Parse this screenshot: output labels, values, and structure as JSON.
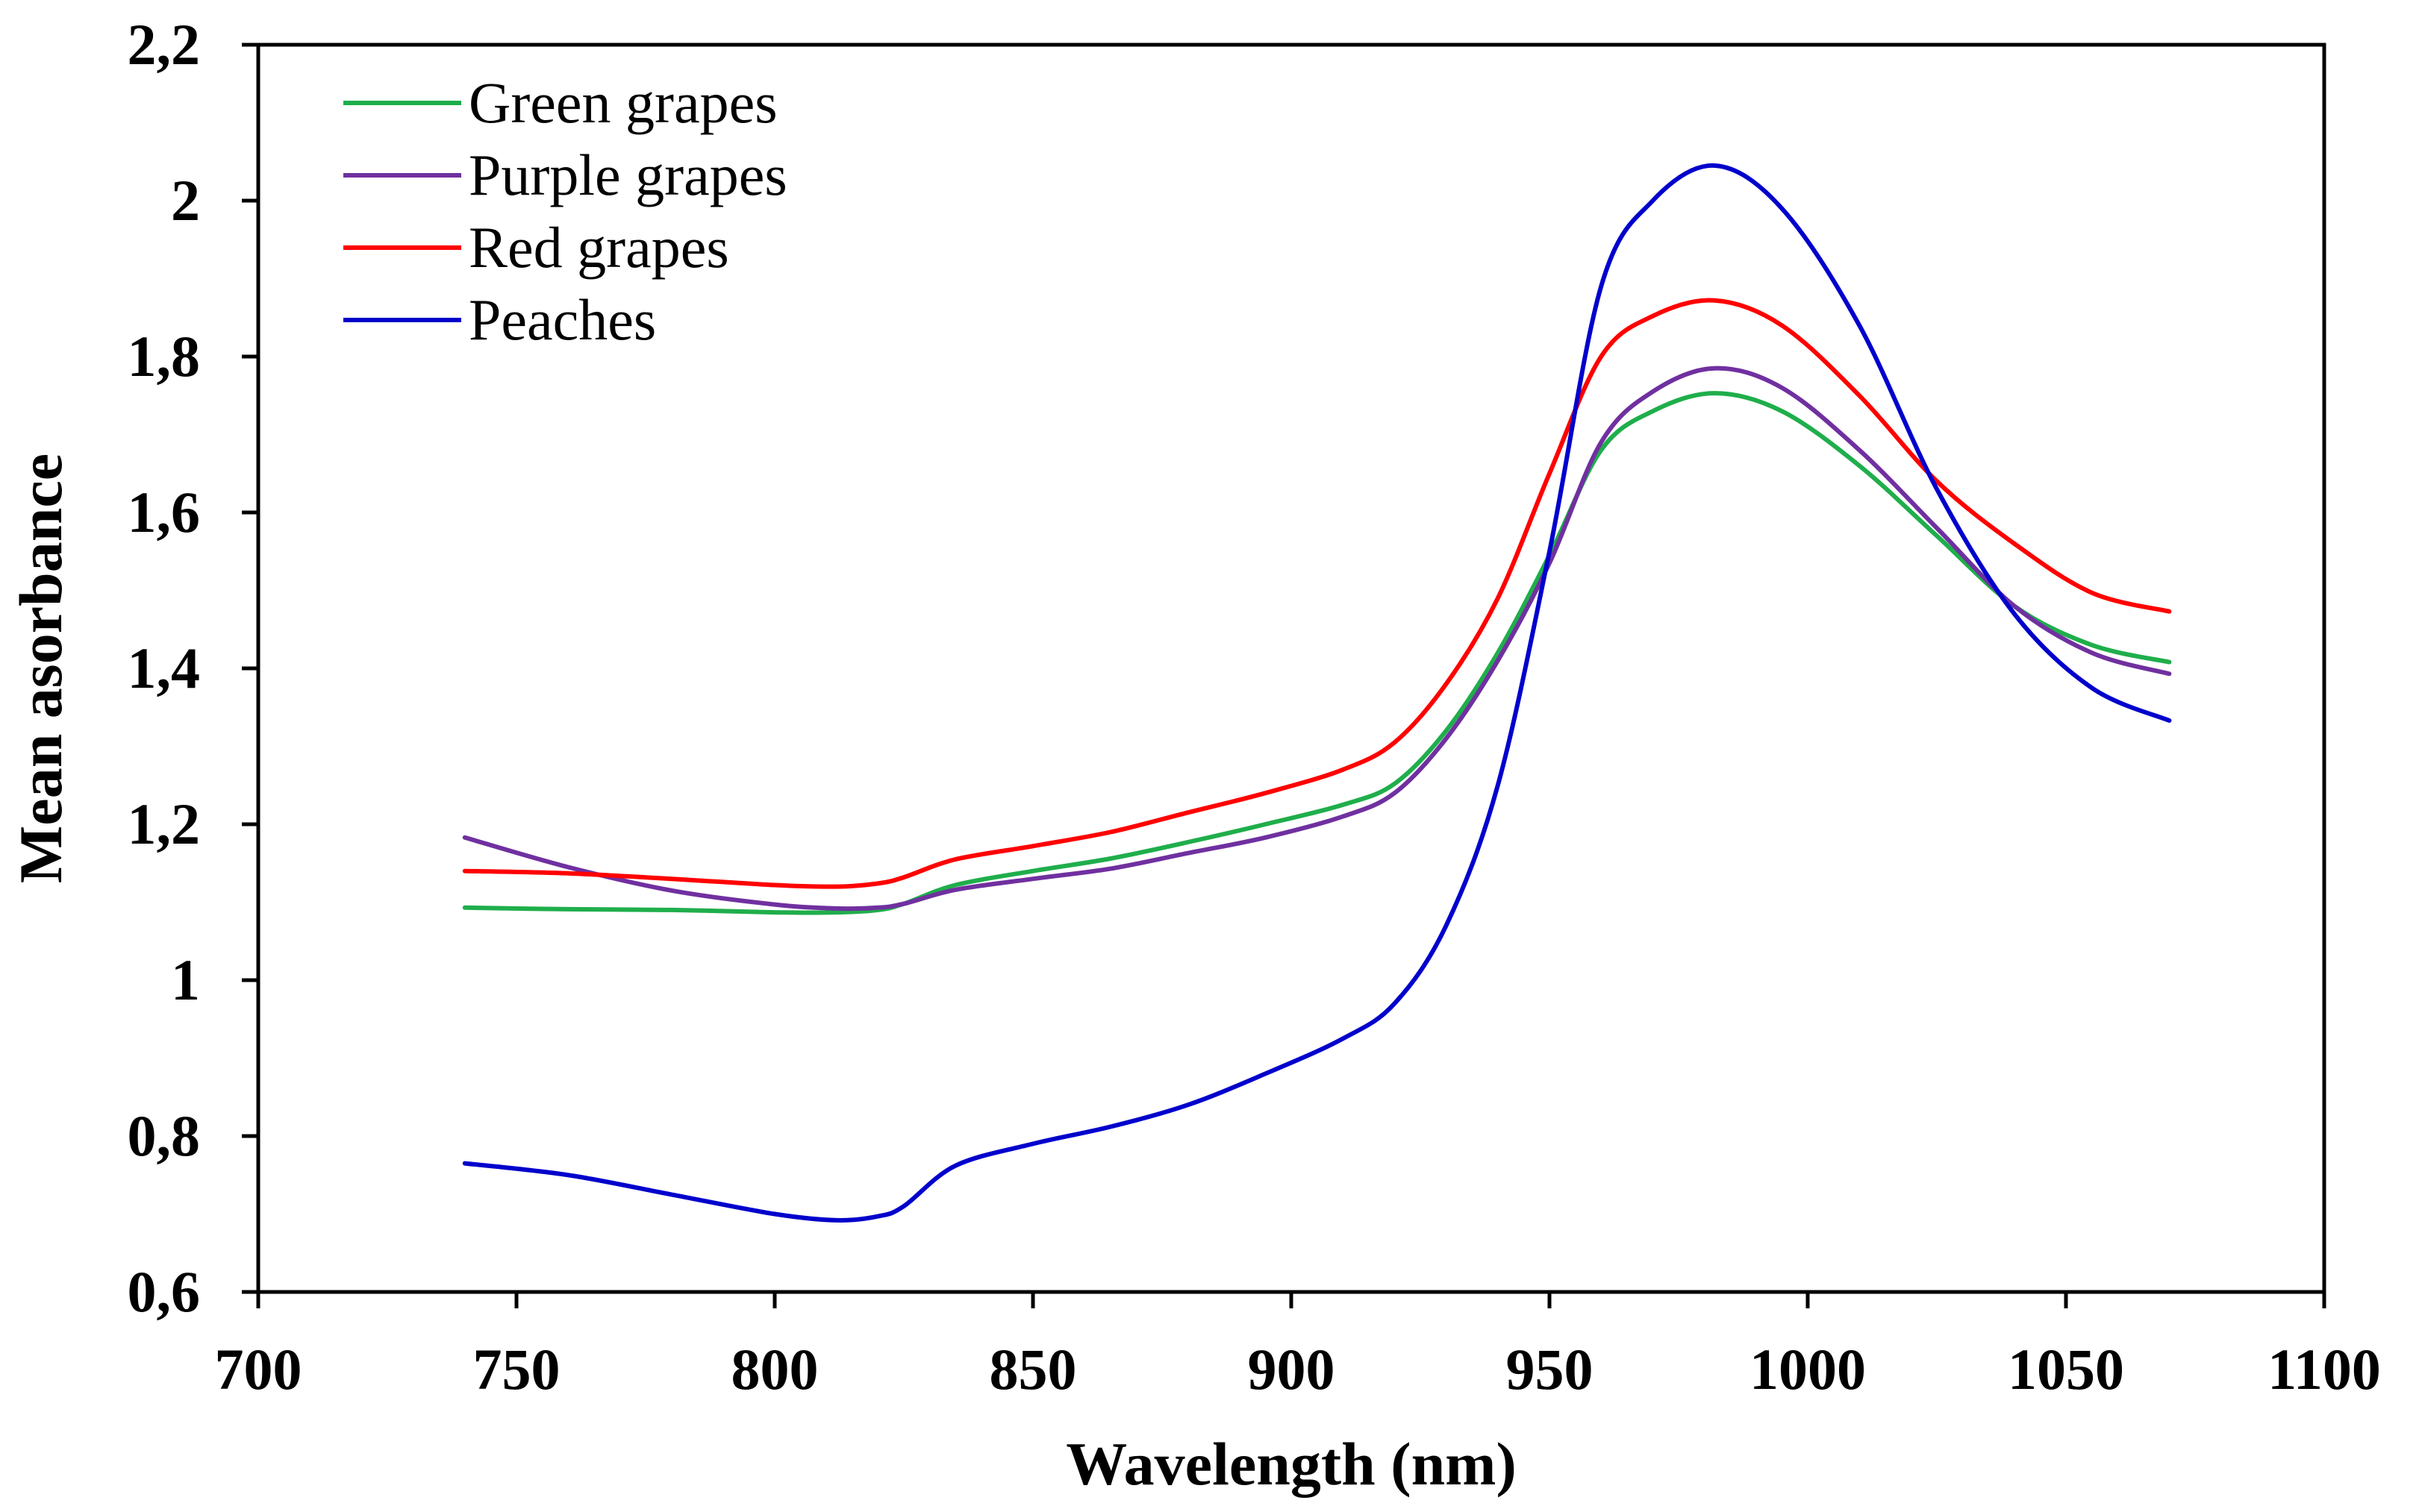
{
  "chart_data": {
    "type": "line",
    "title": "",
    "xlabel": "Wavelength (nm)",
    "ylabel": "Mean asorbance",
    "xlim": [
      700,
      1100
    ],
    "ylim": [
      0.6,
      2.2
    ],
    "x_ticks": [
      700,
      750,
      800,
      850,
      900,
      950,
      1000,
      1050,
      1100
    ],
    "x_tick_labels": [
      "700",
      "750",
      "800",
      "850",
      "900",
      "950",
      "1000",
      "1050",
      "1100"
    ],
    "y_ticks": [
      0.6,
      0.8,
      1.0,
      1.2,
      1.4,
      1.6,
      1.8,
      2.0,
      2.2
    ],
    "y_tick_labels": [
      "0,6",
      "0,8",
      "1",
      "1,2",
      "1,4",
      "1,6",
      "1,8",
      "2",
      "2,2"
    ],
    "grid": false,
    "legend_position": "top-left",
    "x": [
      740,
      760,
      780,
      800,
      812,
      820,
      825,
      835,
      850,
      865,
      880,
      895,
      910,
      920,
      930,
      940,
      950,
      960,
      970,
      982,
      995,
      1010,
      1025,
      1040,
      1055,
      1070
    ],
    "series": [
      {
        "name": "Green grapes",
        "color": "#1fae4b",
        "values": [
          1.093,
          1.091,
          1.09,
          1.087,
          1.087,
          1.09,
          1.098,
          1.122,
          1.14,
          1.156,
          1.177,
          1.2,
          1.225,
          1.252,
          1.32,
          1.42,
          1.545,
          1.68,
          1.73,
          1.753,
          1.73,
          1.66,
          1.57,
          1.48,
          1.43,
          1.408
        ]
      },
      {
        "name": "Purple grapes",
        "color": "#7030a0",
        "values": [
          1.183,
          1.145,
          1.115,
          1.097,
          1.092,
          1.093,
          1.098,
          1.116,
          1.13,
          1.143,
          1.163,
          1.183,
          1.21,
          1.24,
          1.31,
          1.41,
          1.535,
          1.69,
          1.755,
          1.785,
          1.76,
          1.68,
          1.58,
          1.48,
          1.42,
          1.393
        ]
      },
      {
        "name": "Red grapes",
        "color": "#ff0000",
        "values": [
          1.14,
          1.137,
          1.13,
          1.122,
          1.12,
          1.124,
          1.132,
          1.155,
          1.172,
          1.19,
          1.215,
          1.24,
          1.27,
          1.305,
          1.38,
          1.49,
          1.65,
          1.8,
          1.852,
          1.872,
          1.84,
          1.75,
          1.64,
          1.56,
          1.497,
          1.473
        ]
      },
      {
        "name": "Peaches",
        "color": "#0000cc",
        "values": [
          0.765,
          0.75,
          0.725,
          0.7,
          0.692,
          0.697,
          0.71,
          0.762,
          0.79,
          0.812,
          0.84,
          0.88,
          0.925,
          0.97,
          1.07,
          1.25,
          1.55,
          1.89,
          2.0,
          2.045,
          1.99,
          1.84,
          1.63,
          1.47,
          1.375,
          1.333
        ]
      }
    ]
  }
}
